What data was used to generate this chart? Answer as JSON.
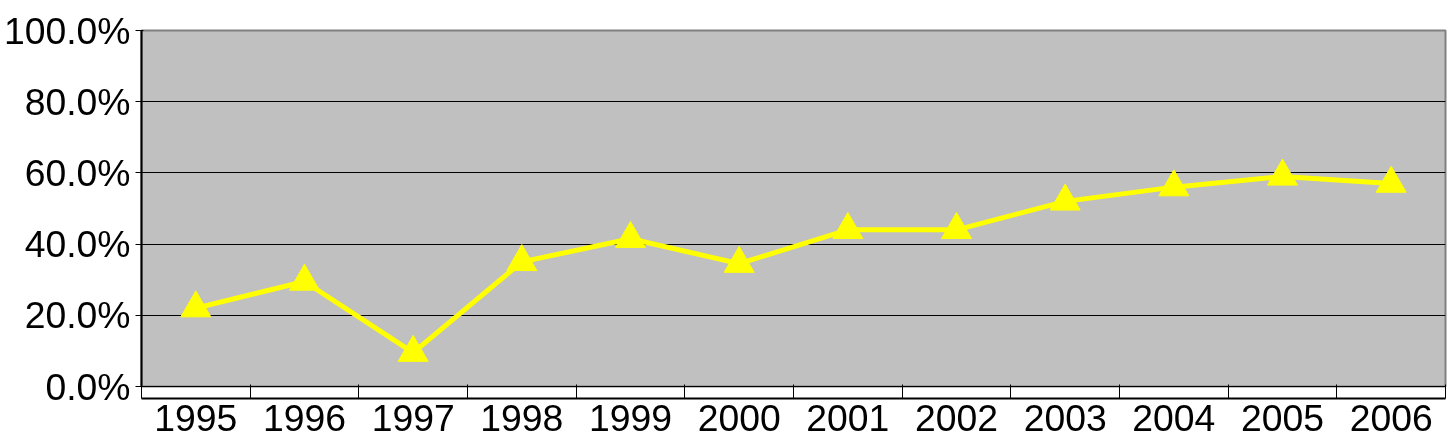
{
  "chart_data": {
    "type": "line",
    "categories": [
      "1995",
      "1996",
      "1997",
      "1998",
      "1999",
      "2000",
      "2001",
      "2002",
      "2003",
      "2004",
      "2005",
      "2006"
    ],
    "series": [
      {
        "color": "#ffff00",
        "values": [
          22,
          29.5,
          9.5,
          35,
          41.5,
          34.5,
          44,
          44,
          52,
          56,
          59,
          57
        ]
      }
    ],
    "ylim": [
      0,
      100
    ],
    "yticks": [
      {
        "value": 0,
        "label": "0.0%"
      },
      {
        "value": 20,
        "label": "20.0%"
      },
      {
        "value": 40,
        "label": "40.0%"
      },
      {
        "value": 60,
        "label": "60.0%"
      },
      {
        "value": 80,
        "label": "80.0%"
      },
      {
        "value": 100,
        "label": "100.0%"
      }
    ],
    "grid": "y",
    "marker": "triangle",
    "line_style": "solid"
  }
}
